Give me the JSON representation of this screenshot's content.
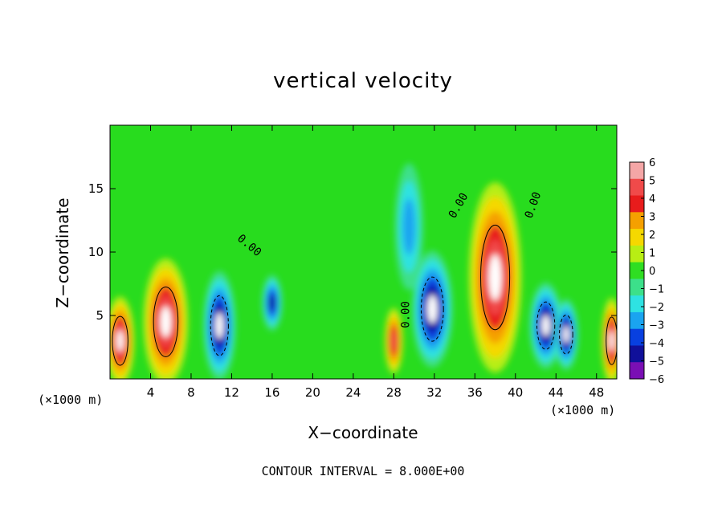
{
  "chart_data": {
    "type": "heatmap",
    "title": "vertical velocity",
    "xlabel": "X−coordinate",
    "ylabel": "Z−coordinate",
    "x_unit_label": "(×1000 m)",
    "x_ticks": [
      "4",
      "8",
      "12",
      "16",
      "20",
      "24",
      "28",
      "32",
      "36",
      "40",
      "44",
      "48"
    ],
    "y_ticks": [
      "5",
      "10",
      "15"
    ],
    "xlim": [
      0,
      50
    ],
    "ylim": [
      0,
      20
    ],
    "footer": "CONTOUR INTERVAL = 8.000E+00",
    "contour_labels": [
      "0.00",
      "0.00",
      "0.00",
      "0.00"
    ],
    "colorbar": {
      "levels": [
        "6",
        "5",
        "4",
        "3",
        "2",
        "1",
        "0",
        "−1",
        "−2",
        "−3",
        "−4",
        "−5",
        "−6"
      ],
      "colors": [
        "#f4a6a6",
        "#f04a4a",
        "#e81c1c",
        "#f5a000",
        "#f5d800",
        "#b8ee14",
        "#2fde22",
        "#3ce08a",
        "#2ee2e2",
        "#1aa4f0",
        "#0840e0",
        "#10109a",
        "#7a0fb4"
      ]
    },
    "features": [
      {
        "kind": "updraft",
        "x": 1.0,
        "z": 3.0,
        "value": 6
      },
      {
        "kind": "updraft",
        "x": 5.5,
        "z": 4.5,
        "value": 6
      },
      {
        "kind": "downdraft",
        "x": 10.8,
        "z": 4.2,
        "value": -6
      },
      {
        "kind": "downdraft",
        "x": 16.0,
        "z": 6.0,
        "value": -5
      },
      {
        "kind": "updraft",
        "x": 28.0,
        "z": 3.0,
        "value": 5
      },
      {
        "kind": "downdraft",
        "x": 31.8,
        "z": 5.5,
        "value": -6
      },
      {
        "kind": "downdraft",
        "x": 29.5,
        "z": 12.0,
        "value": -3
      },
      {
        "kind": "updraft",
        "x": 38.0,
        "z": 8.0,
        "value": 6
      },
      {
        "kind": "downdraft",
        "x": 43.0,
        "z": 4.2,
        "value": -6
      },
      {
        "kind": "downdraft",
        "x": 45.0,
        "z": 3.5,
        "value": -6
      },
      {
        "kind": "updraft",
        "x": 49.5,
        "z": 3.0,
        "value": 6
      }
    ]
  }
}
